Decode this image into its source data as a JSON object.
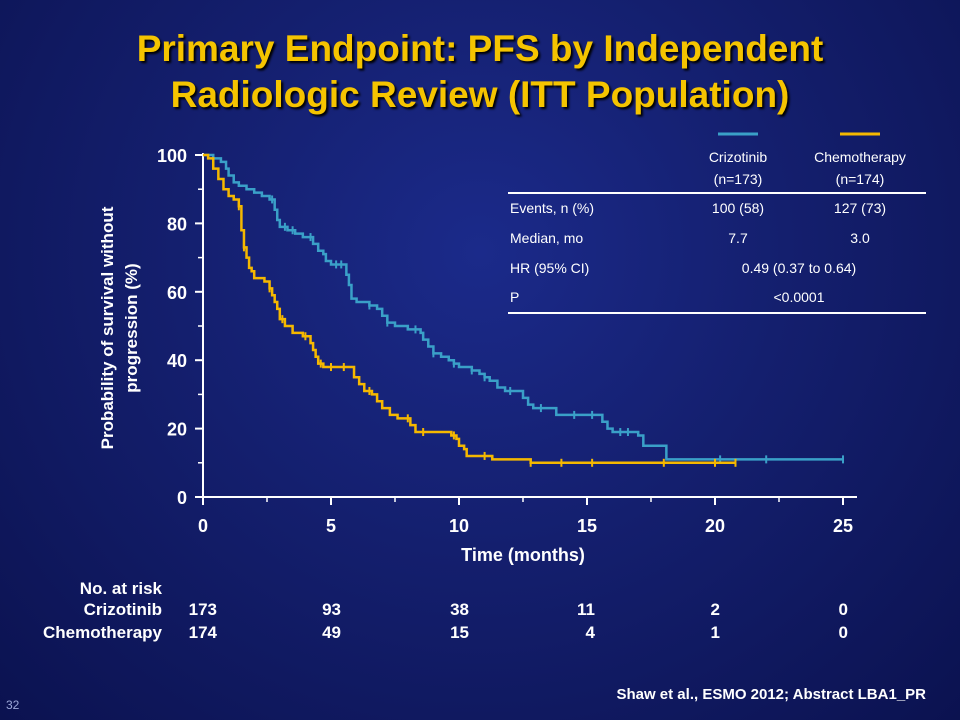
{
  "title_line1": "Primary Endpoint: PFS by Independent",
  "title_line2": "Radiologic Review (ITT Population)",
  "chart_data": {
    "type": "line",
    "subtype": "kaplan-meier step",
    "xlabel": "Time (months)",
    "ylabel_line1": "Probability of survival without",
    "ylabel_line2": "progression (%)",
    "xlim": [
      0,
      25
    ],
    "ylim": [
      0,
      100
    ],
    "xticks": [
      "0",
      "5",
      "10",
      "15",
      "20",
      "25"
    ],
    "yticks": [
      "0",
      "20",
      "40",
      "60",
      "80",
      "100"
    ],
    "grid": false,
    "series": [
      {
        "name": "Crizotinib",
        "color": "#3aa0c8",
        "points": [
          [
            0,
            100
          ],
          [
            0.4,
            99
          ],
          [
            0.7,
            98
          ],
          [
            0.9,
            96
          ],
          [
            1.0,
            94
          ],
          [
            1.2,
            92
          ],
          [
            1.4,
            91
          ],
          [
            1.7,
            90
          ],
          [
            2.0,
            89
          ],
          [
            2.3,
            88
          ],
          [
            2.6,
            87
          ],
          [
            2.8,
            84
          ],
          [
            2.9,
            81
          ],
          [
            3.0,
            79
          ],
          [
            3.3,
            78
          ],
          [
            3.6,
            77
          ],
          [
            3.9,
            76
          ],
          [
            4.2,
            76
          ],
          [
            4.3,
            74
          ],
          [
            4.5,
            72
          ],
          [
            4.7,
            71
          ],
          [
            4.8,
            69
          ],
          [
            5.0,
            68
          ],
          [
            5.5,
            68
          ],
          [
            5.6,
            65
          ],
          [
            5.7,
            62
          ],
          [
            5.8,
            58
          ],
          [
            6.0,
            57
          ],
          [
            6.5,
            56
          ],
          [
            6.8,
            55
          ],
          [
            7.0,
            53
          ],
          [
            7.2,
            51
          ],
          [
            7.5,
            50
          ],
          [
            8.0,
            49
          ],
          [
            8.5,
            48
          ],
          [
            8.6,
            46
          ],
          [
            8.8,
            44
          ],
          [
            9.0,
            42
          ],
          [
            9.3,
            41
          ],
          [
            9.6,
            40
          ],
          [
            9.8,
            39
          ],
          [
            10.0,
            38
          ],
          [
            10.5,
            37
          ],
          [
            10.8,
            36
          ],
          [
            11.0,
            35
          ],
          [
            11.2,
            34
          ],
          [
            11.5,
            32
          ],
          [
            11.8,
            31
          ],
          [
            12.4,
            31
          ],
          [
            12.5,
            29
          ],
          [
            12.7,
            27
          ],
          [
            12.9,
            26
          ],
          [
            13.6,
            26
          ],
          [
            13.8,
            24
          ],
          [
            15.4,
            24
          ],
          [
            15.6,
            22
          ],
          [
            15.8,
            20
          ],
          [
            16.0,
            19
          ],
          [
            17.0,
            18
          ],
          [
            17.2,
            15
          ],
          [
            17.9,
            15
          ],
          [
            18.1,
            11
          ],
          [
            25.0,
            11
          ]
        ]
      },
      {
        "name": "Chemotherapy",
        "color": "#f5b800",
        "points": [
          [
            0,
            100
          ],
          [
            0.2,
            99
          ],
          [
            0.4,
            96
          ],
          [
            0.6,
            93
          ],
          [
            0.8,
            90
          ],
          [
            1.0,
            88
          ],
          [
            1.2,
            87
          ],
          [
            1.4,
            85
          ],
          [
            1.5,
            78
          ],
          [
            1.6,
            73
          ],
          [
            1.7,
            70
          ],
          [
            1.8,
            67
          ],
          [
            1.9,
            66
          ],
          [
            2.0,
            64
          ],
          [
            2.4,
            63
          ],
          [
            2.6,
            61
          ],
          [
            2.7,
            59
          ],
          [
            2.8,
            57
          ],
          [
            2.9,
            55
          ],
          [
            3.0,
            52
          ],
          [
            3.2,
            50
          ],
          [
            3.5,
            48
          ],
          [
            3.9,
            47
          ],
          [
            4.2,
            45
          ],
          [
            4.3,
            43
          ],
          [
            4.4,
            41
          ],
          [
            4.5,
            39
          ],
          [
            4.7,
            38
          ],
          [
            5.8,
            38
          ],
          [
            5.9,
            35
          ],
          [
            6.1,
            33
          ],
          [
            6.3,
            31
          ],
          [
            6.6,
            30
          ],
          [
            6.8,
            28
          ],
          [
            7.0,
            26
          ],
          [
            7.3,
            24
          ],
          [
            7.6,
            23
          ],
          [
            8.1,
            21
          ],
          [
            8.3,
            19
          ],
          [
            9.6,
            19
          ],
          [
            9.7,
            18
          ],
          [
            9.9,
            17
          ],
          [
            10.0,
            15
          ],
          [
            10.2,
            14
          ],
          [
            10.3,
            12
          ],
          [
            11.0,
            12
          ],
          [
            11.3,
            11
          ],
          [
            12.8,
            10
          ],
          [
            20.8,
            10
          ]
        ]
      }
    ],
    "censor_marks": {
      "Crizotinib": [
        2.7,
        3.2,
        3.5,
        4.2,
        5.2,
        5.4,
        6.5,
        7.2,
        8.3,
        9.0,
        9.8,
        10.5,
        11.0,
        12.0,
        13.2,
        14.5,
        15.2,
        16.3,
        16.6,
        20.2,
        22.0,
        25.0
      ],
      "Chemotherapy": [
        1.4,
        1.6,
        2.6,
        3.1,
        4.0,
        4.6,
        5.0,
        5.5,
        6.5,
        8.0,
        8.6,
        9.8,
        11.0,
        12.8,
        14.0,
        15.2,
        18.0,
        20.0,
        20.8
      ]
    },
    "legend": {
      "placement": "top-right",
      "line_colors": [
        "#3aa0c8",
        "#f5b800"
      ],
      "col1_name": "Crizotinib",
      "col1_n": "(n=173)",
      "col2_name": "Chemotherapy",
      "col2_n": "(n=174)"
    },
    "stats_table": {
      "rows": [
        {
          "label": "Events, n (%)",
          "col1": "100 (58)",
          "col2": "127 (73)",
          "span": ""
        },
        {
          "label": "Median, mo",
          "col1": "7.7",
          "col2": "3.0",
          "span": ""
        },
        {
          "label": "HR (95% CI)",
          "col1": "",
          "col2": "",
          "span": "0.49 (0.37 to 0.64)"
        },
        {
          "label": "P",
          "col1": "",
          "col2": "",
          "span": "<0.0001"
        }
      ]
    }
  },
  "risk_table": {
    "header": "No. at risk",
    "rows": [
      {
        "label": "Crizotinib",
        "values": [
          "173",
          "93",
          "38",
          "11",
          "2",
          "0"
        ]
      },
      {
        "label": "Chemotherapy",
        "values": [
          "174",
          "49",
          "15",
          "4",
          "1",
          "0"
        ]
      }
    ]
  },
  "citation": "Shaw et al., ESMO 2012; Abstract LBA1_PR",
  "slide_number": "32"
}
